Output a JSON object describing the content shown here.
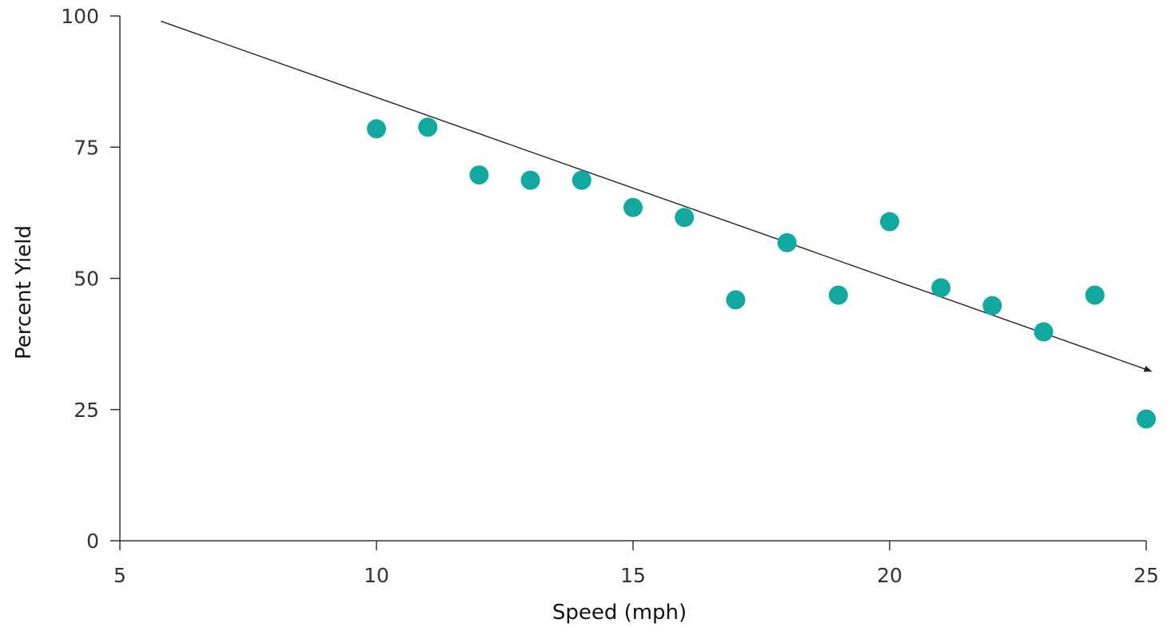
{
  "chart_data": {
    "type": "scatter",
    "title": "",
    "xlabel": "Speed (mph)",
    "ylabel": "Percent Yield",
    "xlim": [
      5,
      25
    ],
    "ylim": [
      0,
      100
    ],
    "xticks": [
      5,
      10,
      15,
      20,
      25
    ],
    "yticks": [
      0,
      25,
      50,
      75,
      100
    ],
    "grid": false,
    "marker_color": "#10A89F",
    "series": [
      {
        "points": [
          {
            "x": 10,
            "y": 78.5
          },
          {
            "x": 11,
            "y": 78.8
          },
          {
            "x": 12,
            "y": 69.7
          },
          {
            "x": 13,
            "y": 68.7
          },
          {
            "x": 14,
            "y": 68.7
          },
          {
            "x": 15,
            "y": 63.5
          },
          {
            "x": 16,
            "y": 61.6
          },
          {
            "x": 17,
            "y": 45.9
          },
          {
            "x": 18,
            "y": 56.8
          },
          {
            "x": 19,
            "y": 46.8
          },
          {
            "x": 20,
            "y": 60.8
          },
          {
            "x": 21,
            "y": 48.2
          },
          {
            "x": 22,
            "y": 44.8
          },
          {
            "x": 23,
            "y": 39.8
          },
          {
            "x": 24,
            "y": 46.8
          },
          {
            "x": 25,
            "y": 23.2
          }
        ]
      }
    ],
    "trend_line": {
      "from": {
        "x": 5.8,
        "y": 99.0
      },
      "to": {
        "x": 25.1,
        "y": 32.3
      },
      "arrow": true,
      "color": "#222222"
    }
  }
}
